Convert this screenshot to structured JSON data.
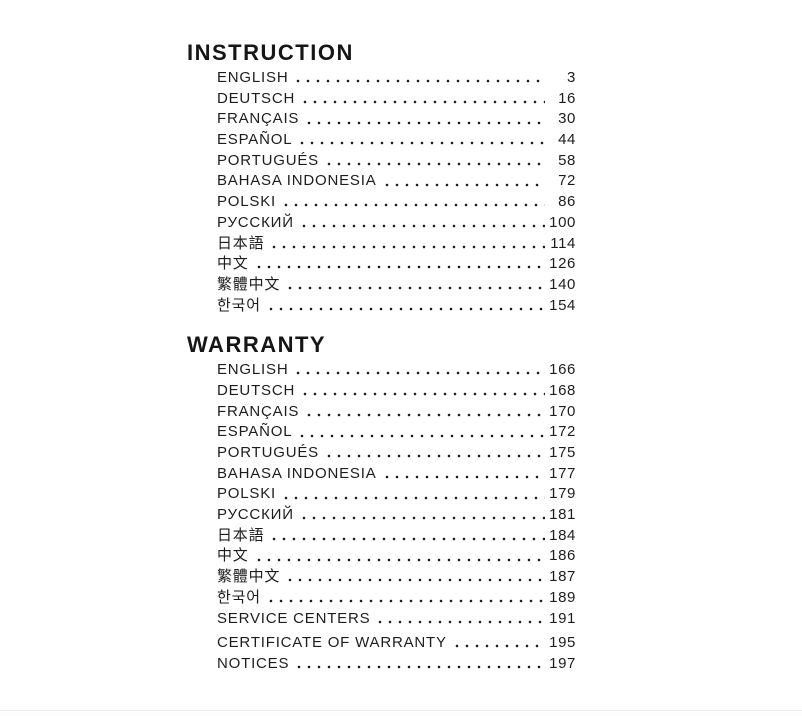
{
  "document": {
    "sections": [
      {
        "title": "INSTRUCTION",
        "entries": [
          {
            "label": "ENGLISH",
            "page": "3"
          },
          {
            "label": "DEUTSCH",
            "page": "16"
          },
          {
            "label": "FRANÇAIS",
            "page": "30"
          },
          {
            "label": "ESPAÑOL",
            "page": "44"
          },
          {
            "label": "PORTUGUÉS",
            "page": "58"
          },
          {
            "label": "BAHASA INDONESIA",
            "page": "72"
          },
          {
            "label": "POLSKI",
            "page": "86"
          },
          {
            "label": "РУССКИЙ",
            "page": "100"
          },
          {
            "label": "日本語",
            "page": "114"
          },
          {
            "label": "中文",
            "page": "126"
          },
          {
            "label": "繁體中文",
            "page": "140"
          },
          {
            "label": "한국어",
            "page": "154"
          }
        ]
      },
      {
        "title": "WARRANTY",
        "entries": [
          {
            "label": "ENGLISH",
            "page": "166"
          },
          {
            "label": "DEUTSCH",
            "page": "168"
          },
          {
            "label": "FRANÇAIS",
            "page": "170"
          },
          {
            "label": "ESPAÑOL",
            "page": "172"
          },
          {
            "label": "PORTUGUÉS",
            "page": "175"
          },
          {
            "label": "BAHASA INDONESIA",
            "page": "177"
          },
          {
            "label": "POLSKI",
            "page": "179"
          },
          {
            "label": "РУССКИЙ",
            "page": "181"
          },
          {
            "label": "日本語",
            "page": "184"
          },
          {
            "label": "中文",
            "page": "186"
          },
          {
            "label": "繁體中文",
            "page": "187"
          },
          {
            "label": "한국어",
            "page": "189"
          },
          {
            "label": "SERVICE CENTERS",
            "page": "191"
          },
          {
            "label": "CERTIFICATE OF WARRANTY",
            "page": "195"
          },
          {
            "label": "NOTICES",
            "page": "197"
          }
        ]
      }
    ],
    "text_color": "#1d1d1d"
  }
}
